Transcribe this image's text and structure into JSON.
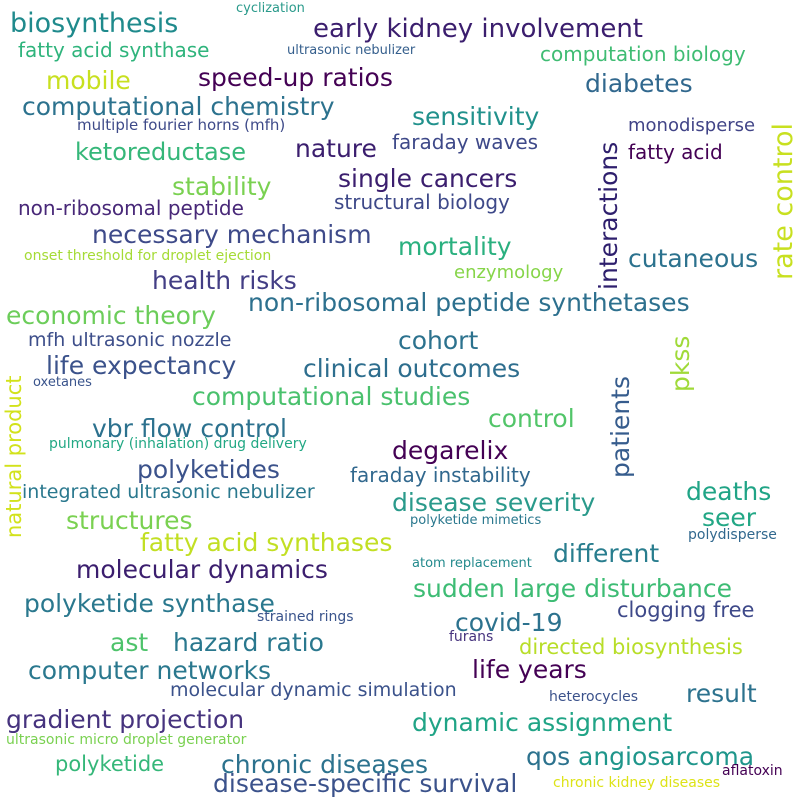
{
  "words": [
    {
      "text": "biosynthesis",
      "color": "#1f8a8c"
    },
    {
      "text": "early kidney involvement",
      "color": "#3b1e6e"
    },
    {
      "text": "fatty acid synthase",
      "color": "#2fb47c"
    },
    {
      "text": "ultrasonic nebulizer",
      "color": "#355f8d"
    },
    {
      "text": "computation biology",
      "color": "#3fbc73"
    },
    {
      "text": "cyclization",
      "color": "#2a9a8b"
    },
    {
      "text": "mobile",
      "color": "#c8e020"
    },
    {
      "text": "speed-up ratios",
      "color": "#440154"
    },
    {
      "text": "diabetes",
      "color": "#31688e"
    },
    {
      "text": "computational chemistry",
      "color": "#2c728e"
    },
    {
      "text": "sensitivity",
      "color": "#21918c"
    },
    {
      "text": "multiple fourier horns (mfh)",
      "color": "#3e4a89"
    },
    {
      "text": "monodisperse",
      "color": "#414487"
    },
    {
      "text": "ketoreductase",
      "color": "#35b779"
    },
    {
      "text": "nature",
      "color": "#3b1e6e"
    },
    {
      "text": "faraday waves",
      "color": "#3e4989"
    },
    {
      "text": "fatty acid",
      "color": "#440154"
    },
    {
      "text": "stability",
      "color": "#7ad151"
    },
    {
      "text": "single cancers",
      "color": "#3b1e6e"
    },
    {
      "text": "non-ribosomal peptide",
      "color": "#482878"
    },
    {
      "text": "structural biology",
      "color": "#3e4989"
    },
    {
      "text": "necessary mechanism",
      "color": "#3e4a89"
    },
    {
      "text": "mortality",
      "color": "#2ab07f"
    },
    {
      "text": "onset threshold for droplet ejection",
      "color": "#a5db36"
    },
    {
      "text": "enzymology",
      "color": "#86d549"
    },
    {
      "text": "cutaneous",
      "color": "#2c728e"
    },
    {
      "text": "health risks",
      "color": "#433e85"
    },
    {
      "text": "non-ribosomal peptide synthetases",
      "color": "#2d708e"
    },
    {
      "text": "economic theory",
      "color": "#6ccd5a"
    },
    {
      "text": "cohort",
      "color": "#2c728e"
    },
    {
      "text": "mfh ultrasonic nozzle",
      "color": "#3d4e8a"
    },
    {
      "text": "life expectancy",
      "color": "#3b528b"
    },
    {
      "text": "clinical outcomes",
      "color": "#2e6e8e"
    },
    {
      "text": "oxetanes",
      "color": "#3a548c"
    },
    {
      "text": "computational studies",
      "color": "#4ac16d"
    },
    {
      "text": "control",
      "color": "#52c569"
    },
    {
      "text": "vbr flow control",
      "color": "#2c718e"
    },
    {
      "text": "degarelix",
      "color": "#440154"
    },
    {
      "text": "pulmonary (inhalation) drug delivery",
      "color": "#22a884"
    },
    {
      "text": "polyketides",
      "color": "#3b528b"
    },
    {
      "text": "faraday instability",
      "color": "#31688e"
    },
    {
      "text": "integrated ultrasonic nebulizer",
      "color": "#2a788e"
    },
    {
      "text": "disease severity",
      "color": "#2a9a8b"
    },
    {
      "text": "deaths",
      "color": "#20a486"
    },
    {
      "text": "seer",
      "color": "#22a785"
    },
    {
      "text": "structures",
      "color": "#7ad151"
    },
    {
      "text": "polyketide mimetics",
      "color": "#2a788e"
    },
    {
      "text": "fatty acid synthases",
      "color": "#c2df23"
    },
    {
      "text": "polydisperse",
      "color": "#31688e"
    },
    {
      "text": "different",
      "color": "#287d8e"
    },
    {
      "text": "atom replacement",
      "color": "#238a8d"
    },
    {
      "text": "molecular dynamics",
      "color": "#3b1e6e"
    },
    {
      "text": "sudden large disturbance",
      "color": "#3dbc74"
    },
    {
      "text": "polyketide synthase",
      "color": "#2a788e"
    },
    {
      "text": "clogging free",
      "color": "#3e4989"
    },
    {
      "text": "strained rings",
      "color": "#3a548c"
    },
    {
      "text": "covid-19",
      "color": "#2c728e"
    },
    {
      "text": "ast",
      "color": "#4ec36b"
    },
    {
      "text": "hazard ratio",
      "color": "#2a788e"
    },
    {
      "text": "furans",
      "color": "#46337e"
    },
    {
      "text": "directed biosynthesis",
      "color": "#b8de29"
    },
    {
      "text": "computer networks",
      "color": "#2a788e"
    },
    {
      "text": "life years",
      "color": "#440154"
    },
    {
      "text": "molecular dynamic simulation",
      "color": "#3b528b"
    },
    {
      "text": "result",
      "color": "#2c728e"
    },
    {
      "text": "heterocycles",
      "color": "#3b528b"
    },
    {
      "text": "gradient projection",
      "color": "#46337e"
    },
    {
      "text": "dynamic assignment",
      "color": "#20a486"
    },
    {
      "text": "ultrasonic micro droplet generator",
      "color": "#7ad151"
    },
    {
      "text": "chronic diseases",
      "color": "#2c728e"
    },
    {
      "text": "qos",
      "color": "#2c728e"
    },
    {
      "text": "angiosarcoma",
      "color": "#1f968b"
    },
    {
      "text": "polyketide",
      "color": "#35b779"
    },
    {
      "text": "disease-specific survival",
      "color": "#3b528b"
    },
    {
      "text": "chronic kidney diseases",
      "color": "#dde318"
    },
    {
      "text": "aflatoxin",
      "color": "#440154"
    },
    {
      "text": "rate control",
      "color": "#c8e020"
    },
    {
      "text": "interactions",
      "color": "#2e1f6d"
    },
    {
      "text": "pkss",
      "color": "#a0da39"
    },
    {
      "text": "patients",
      "color": "#365c8d"
    },
    {
      "text": "natural product",
      "color": "#d2e21b"
    }
  ]
}
